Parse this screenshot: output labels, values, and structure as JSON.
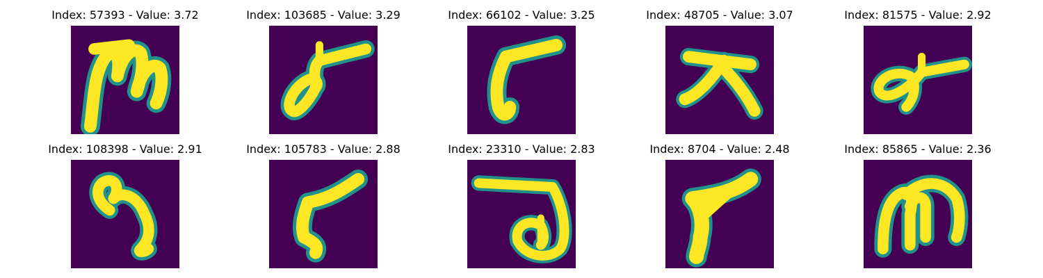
{
  "colors": {
    "background_pixel": "#440154",
    "stroke_pixel": "#fde725",
    "edge_pixel": "#21918c",
    "mid_pixel": "#5ec962"
  },
  "panels": [
    {
      "title": "Index: 57393 - Value: 3.72",
      "glyph": "m-shape"
    },
    {
      "title": "Index: 103685 - Value: 3.29",
      "glyph": "loop-with-bar"
    },
    {
      "title": "Index: 66102 - Value: 3.25",
      "glyph": "bent-stroke"
    },
    {
      "title": "Index: 48705 - Value: 3.07",
      "glyph": "cross-shape"
    },
    {
      "title": "Index: 81575 - Value: 2.92",
      "glyph": "loop-with-bar"
    },
    {
      "title": "Index: 108398 - Value: 2.91",
      "glyph": "curl-shape"
    },
    {
      "title": "Index: 105783 - Value: 2.88",
      "glyph": "bent-stroke"
    },
    {
      "title": "Index: 23310 - Value: 2.83",
      "glyph": "bar-with-loop"
    },
    {
      "title": "Index: 8704 - Value: 2.48",
      "glyph": "wedge-stroke"
    },
    {
      "title": "Index: 85865 - Value: 2.36",
      "glyph": "m-shape"
    }
  ]
}
